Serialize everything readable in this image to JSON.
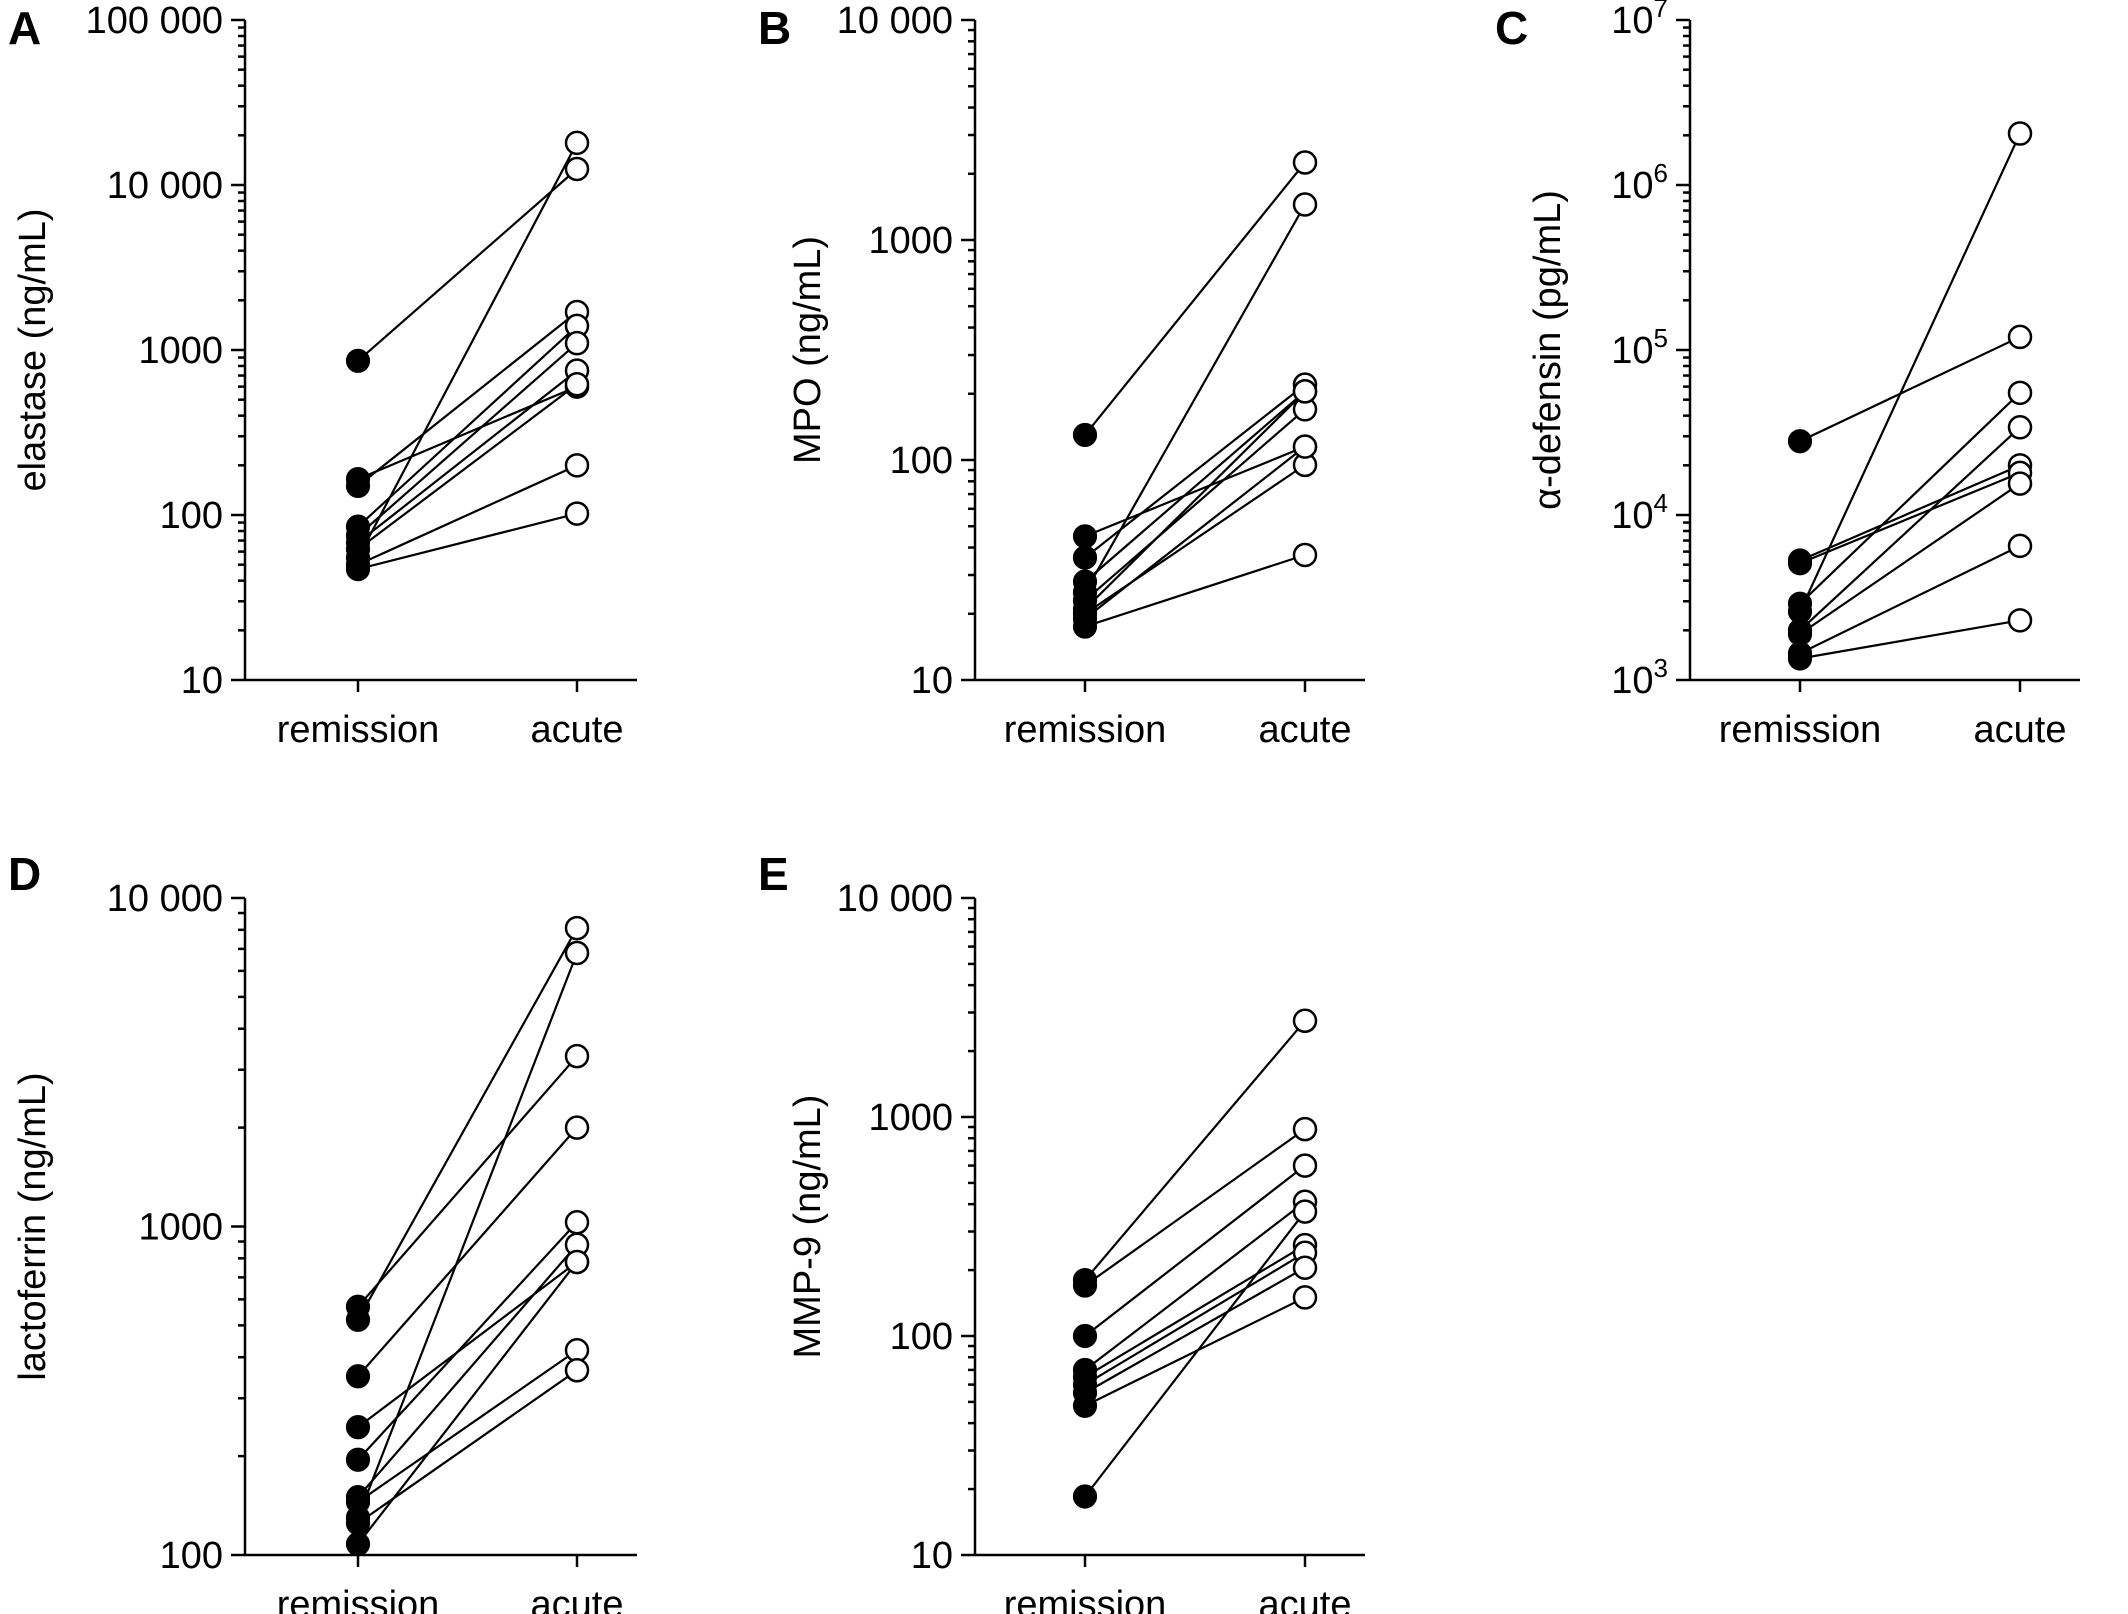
{
  "chart_data": [
    {
      "panel": "A",
      "type": "scatter",
      "ylabel": "elastase (ng/mL)",
      "yscale": "log",
      "ylim": [
        10,
        100000
      ],
      "yticks": [
        {
          "value": 10,
          "label": "10",
          "base": "",
          "exp": ""
        },
        {
          "value": 100,
          "label": "100",
          "base": "",
          "exp": ""
        },
        {
          "value": 1000,
          "label": "1000",
          "base": "",
          "exp": ""
        },
        {
          "value": 10000,
          "label": "10 000",
          "base": "",
          "exp": ""
        },
        {
          "value": 100000,
          "label": "100 000",
          "base": "",
          "exp": ""
        }
      ],
      "categories": [
        "remission",
        "acute"
      ],
      "pairs": [
        [
          860,
          12500
        ],
        [
          165,
          600
        ],
        [
          150,
          1700
        ],
        [
          85,
          1400
        ],
        [
          75,
          1100
        ],
        [
          68,
          750
        ],
        [
          55,
          18000
        ],
        [
          62,
          620
        ],
        [
          50,
          200
        ],
        [
          47,
          102
        ]
      ]
    },
    {
      "panel": "B",
      "type": "scatter",
      "ylabel": "MPO (ng/mL)",
      "yscale": "log",
      "ylim": [
        10,
        10000
      ],
      "yticks": [
        {
          "value": 10,
          "label": "10",
          "base": "",
          "exp": ""
        },
        {
          "value": 100,
          "label": "100",
          "base": "",
          "exp": ""
        },
        {
          "value": 1000,
          "label": "1000",
          "base": "",
          "exp": ""
        },
        {
          "value": 10000,
          "label": "10 000",
          "base": "",
          "exp": ""
        }
      ],
      "categories": [
        "remission",
        "acute"
      ],
      "pairs": [
        [
          130,
          2250
        ],
        [
          45,
          115
        ],
        [
          36,
          220
        ],
        [
          28,
          205
        ],
        [
          25,
          1450
        ],
        [
          23,
          170
        ],
        [
          21,
          205
        ],
        [
          20,
          95
        ],
        [
          19,
          115
        ],
        [
          17.5,
          37
        ]
      ]
    },
    {
      "panel": "C",
      "type": "scatter",
      "ylabel": "α-defensin (pg/mL)",
      "yscale": "log",
      "ylim": [
        1000,
        10000000
      ],
      "yticks": [
        {
          "value": 1000,
          "label": "",
          "base": "10",
          "exp": "3"
        },
        {
          "value": 10000,
          "label": "",
          "base": "10",
          "exp": "4"
        },
        {
          "value": 100000,
          "label": "",
          "base": "10",
          "exp": "5"
        },
        {
          "value": 1000000,
          "label": "",
          "base": "10",
          "exp": "6"
        },
        {
          "value": 10000000,
          "label": "",
          "base": "10",
          "exp": "7"
        }
      ],
      "categories": [
        "remission",
        "acute"
      ],
      "pairs": [
        [
          28000,
          120000
        ],
        [
          5300,
          20000
        ],
        [
          5100,
          18000
        ],
        [
          2900,
          55000
        ],
        [
          2600,
          2050000
        ],
        [
          2000,
          34000
        ],
        [
          1900,
          15500
        ],
        [
          1450,
          6500
        ],
        [
          1350,
          2300
        ]
      ]
    },
    {
      "panel": "D",
      "type": "scatter",
      "ylabel": "lactoferrin (ng/mL)",
      "yscale": "log",
      "ylim": [
        100,
        10000
      ],
      "yticks": [
        {
          "value": 100,
          "label": "100",
          "base": "",
          "exp": ""
        },
        {
          "value": 1000,
          "label": "1000",
          "base": "",
          "exp": ""
        },
        {
          "value": 10000,
          "label": "10 000",
          "base": "",
          "exp": ""
        }
      ],
      "categories": [
        "remission",
        "acute"
      ],
      "pairs": [
        [
          570,
          3300
        ],
        [
          520,
          8100
        ],
        [
          350,
          2000
        ],
        [
          245,
          780
        ],
        [
          195,
          1030
        ],
        [
          150,
          880
        ],
        [
          145,
          420
        ],
        [
          130,
          6800
        ],
        [
          125,
          365
        ],
        [
          108,
          780
        ]
      ]
    },
    {
      "panel": "E",
      "type": "scatter",
      "ylabel": "MMP-9 (ng/mL)",
      "yscale": "log",
      "ylim": [
        10,
        10000
      ],
      "yticks": [
        {
          "value": 10,
          "label": "10",
          "base": "",
          "exp": ""
        },
        {
          "value": 100,
          "label": "100",
          "base": "",
          "exp": ""
        },
        {
          "value": 1000,
          "label": "1000",
          "base": "",
          "exp": ""
        },
        {
          "value": 10000,
          "label": "10 000",
          "base": "",
          "exp": ""
        }
      ],
      "categories": [
        "remission",
        "acute"
      ],
      "pairs": [
        [
          180,
          2750
        ],
        [
          170,
          880
        ],
        [
          100,
          600
        ],
        [
          70,
          410
        ],
        [
          65,
          260
        ],
        [
          60,
          240
        ],
        [
          55,
          205
        ],
        [
          48,
          150
        ],
        [
          18.5,
          370
        ]
      ]
    }
  ]
}
